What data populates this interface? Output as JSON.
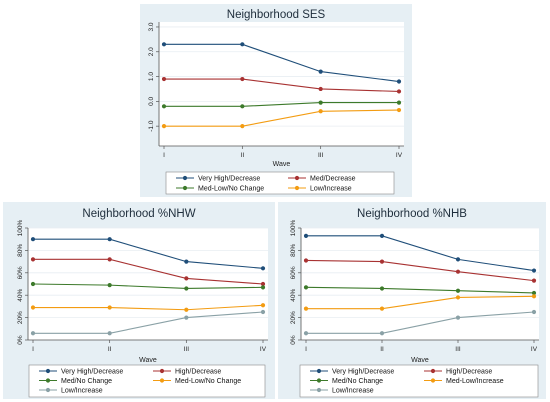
{
  "colors": {
    "panel_bg": "#e6eff4",
    "plot_bg": "#ffffff",
    "grid": "#e8eef2",
    "axis": "#555555"
  },
  "chart_data": [
    {
      "type": "line",
      "title": "Neighborhood  SES",
      "xlabel": "Wave",
      "ylabel": "",
      "categories": [
        "I",
        "II",
        "III",
        "IV"
      ],
      "ylim": [
        -1.8,
        3.2
      ],
      "yticks": [
        3.0,
        2.0,
        1.0,
        0.0,
        -1.0
      ],
      "ytick_labels": [
        "3.0",
        "2.0",
        "1.0",
        "0.0",
        "-1.0"
      ],
      "legend_position": "bottom",
      "series": [
        {
          "name": "Very High/Decrease",
          "color": "#1f4e79",
          "values": [
            2.3,
            2.3,
            1.2,
            0.8
          ]
        },
        {
          "name": "Med/Decrease",
          "color": "#a83232",
          "values": [
            0.9,
            0.9,
            0.5,
            0.4
          ]
        },
        {
          "name": "Med-Low/No Change",
          "color": "#3d7a2b",
          "values": [
            -0.2,
            -0.2,
            -0.05,
            -0.05
          ]
        },
        {
          "name": "Low/Increase",
          "color": "#f39c12",
          "values": [
            -1.0,
            -1.0,
            -0.4,
            -0.35
          ]
        }
      ]
    },
    {
      "type": "line",
      "title": "Neighborhood  %NHW",
      "xlabel": "Wave",
      "ylabel": "",
      "categories": [
        "I",
        "II",
        "III",
        "IV"
      ],
      "ylim": [
        0,
        100
      ],
      "yticks": [
        100,
        80,
        60,
        40,
        20,
        0
      ],
      "ytick_labels": [
        "100%",
        "80%",
        "60%",
        "40%",
        "20%",
        "0%"
      ],
      "legend_position": "bottom",
      "series": [
        {
          "name": "Very High/Decrease",
          "color": "#1f4e79",
          "values": [
            90,
            90,
            70,
            64
          ]
        },
        {
          "name": "High/Decrease",
          "color": "#a83232",
          "values": [
            72,
            72,
            55,
            50
          ]
        },
        {
          "name": "Med/No Change",
          "color": "#3d7a2b",
          "values": [
            50,
            49,
            46,
            47
          ]
        },
        {
          "name": "Med-Low/No Change",
          "color": "#f39c12",
          "values": [
            29,
            29,
            27,
            31
          ]
        },
        {
          "name": "Low/Increase",
          "color": "#8aa1a6",
          "values": [
            6,
            6,
            20,
            25
          ]
        }
      ]
    },
    {
      "type": "line",
      "title": "Neighborhood  %NHB",
      "xlabel": "Wave",
      "ylabel": "",
      "categories": [
        "I",
        "II",
        "III",
        "IV"
      ],
      "ylim": [
        0,
        100
      ],
      "yticks": [
        100,
        80,
        60,
        40,
        20,
        0
      ],
      "ytick_labels": [
        "100%",
        "80%",
        "60%",
        "40%",
        "20%",
        "0%"
      ],
      "legend_position": "bottom",
      "series": [
        {
          "name": "Very High/Decrease",
          "color": "#1f4e79",
          "values": [
            93,
            93,
            72,
            62
          ]
        },
        {
          "name": "High/Decrease",
          "color": "#a83232",
          "values": [
            71,
            70,
            61,
            53
          ]
        },
        {
          "name": "Med/No Change",
          "color": "#3d7a2b",
          "values": [
            47,
            46,
            44,
            42
          ]
        },
        {
          "name": "Med-Low/Increase",
          "color": "#f39c12",
          "values": [
            28,
            28,
            38,
            39
          ]
        },
        {
          "name": "Low/Increase",
          "color": "#8aa1a6",
          "values": [
            6,
            6,
            20,
            25
          ]
        }
      ]
    }
  ]
}
